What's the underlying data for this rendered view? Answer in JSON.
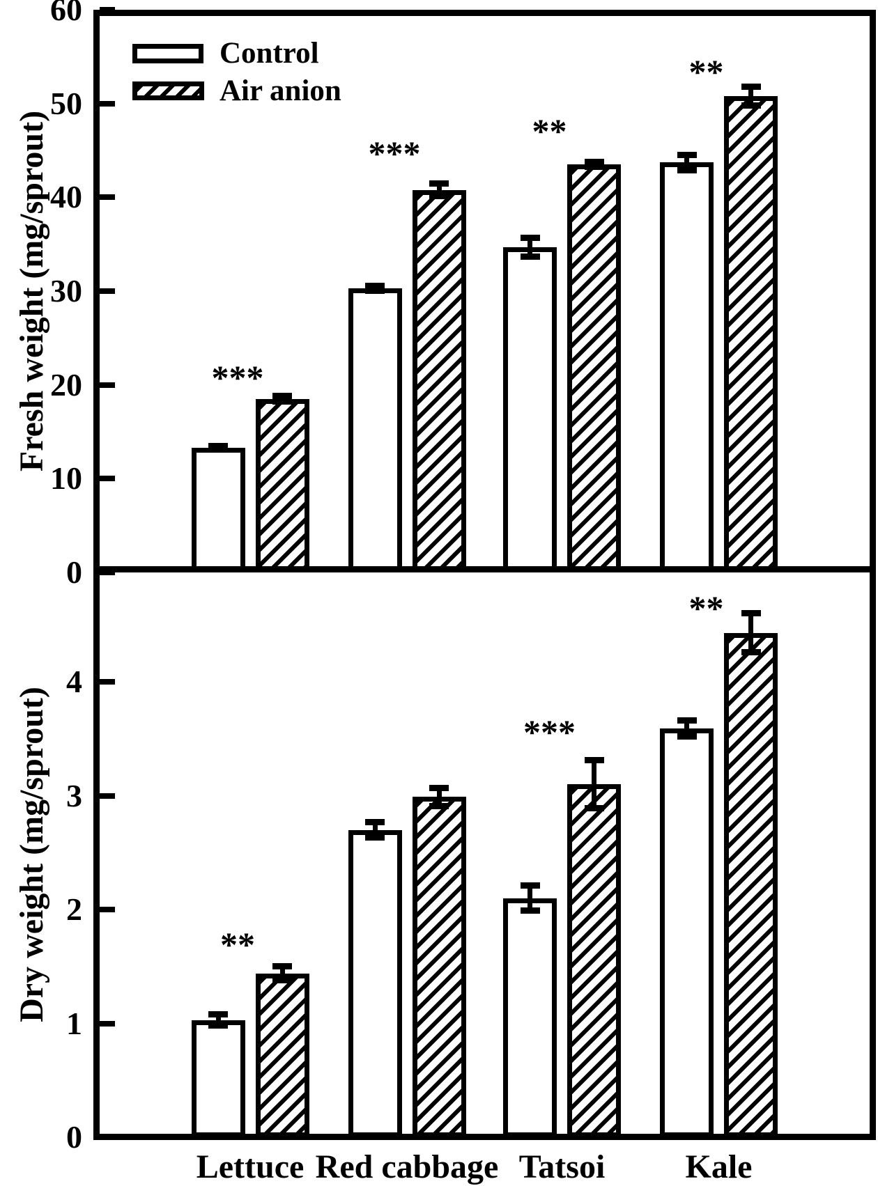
{
  "figure_title": "",
  "colors": {
    "foreground": "#000000",
    "background": "#ffffff"
  },
  "legend": {
    "items": [
      {
        "label": "Control",
        "pattern": "open"
      },
      {
        "label": "Air anion",
        "pattern": "hatched"
      }
    ]
  },
  "chart_data": [
    {
      "type": "bar",
      "panel": "top",
      "title": "",
      "xlabel": "",
      "ylabel": "Fresh weight (mg/sprout)",
      "categories": [
        "Lettuce",
        "Red cabbage",
        "Tatsoi",
        "Kale"
      ],
      "series": [
        {
          "name": "Control",
          "pattern": "open",
          "values": [
            13.3,
            30.3,
            34.7,
            43.7
          ],
          "errors": [
            0.2,
            0.25,
            1.0,
            0.8
          ]
        },
        {
          "name": "Air anion",
          "pattern": "hatched",
          "values": [
            18.5,
            40.8,
            43.5,
            50.8
          ],
          "errors": [
            0.3,
            0.65,
            0.25,
            1.0
          ]
        }
      ],
      "significance": [
        {
          "category": "Lettuce",
          "text": "***",
          "y": 21.7
        },
        {
          "category": "Red cabbage",
          "text": "***",
          "y": 45.6
        },
        {
          "category": "Tatsoi",
          "text": "**",
          "y": 48.0
        },
        {
          "category": "Kale",
          "text": "**",
          "y": 54.3
        }
      ],
      "ylim": [
        0,
        60
      ],
      "yticks": [
        0,
        10,
        20,
        30,
        40,
        50,
        60
      ],
      "grid": false,
      "error_bars": "plus-minus with caps",
      "show_legend": true,
      "legend_position": "upper-left",
      "show_category_labels": false
    },
    {
      "type": "bar",
      "panel": "bottom",
      "title": "",
      "xlabel": "",
      "ylabel": "Dry weight (mg/sprout)",
      "categories": [
        "Lettuce",
        "Red cabbage",
        "Tatsoi",
        "Kale"
      ],
      "series": [
        {
          "name": "Control",
          "pattern": "open",
          "values": [
            1.03,
            2.7,
            2.1,
            3.59
          ],
          "errors": [
            0.05,
            0.07,
            0.11,
            0.07
          ]
        },
        {
          "name": "Air anion",
          "pattern": "hatched",
          "values": [
            1.44,
            2.99,
            3.1,
            4.43
          ],
          "errors": [
            0.06,
            0.08,
            0.21,
            0.17
          ]
        }
      ],
      "significance": [
        {
          "category": "Lettuce",
          "text": "**",
          "y": 1.77
        },
        {
          "category": "Tatsoi",
          "text": "***",
          "y": 3.63
        },
        {
          "category": "Kale",
          "text": "**",
          "y": 4.72
        }
      ],
      "ylim": [
        0,
        4.96
      ],
      "yticks": [
        0,
        1,
        2,
        3,
        4
      ],
      "grid": false,
      "error_bars": "plus-minus with caps",
      "show_legend": false,
      "legend_position": "none",
      "show_category_labels": true
    }
  ]
}
